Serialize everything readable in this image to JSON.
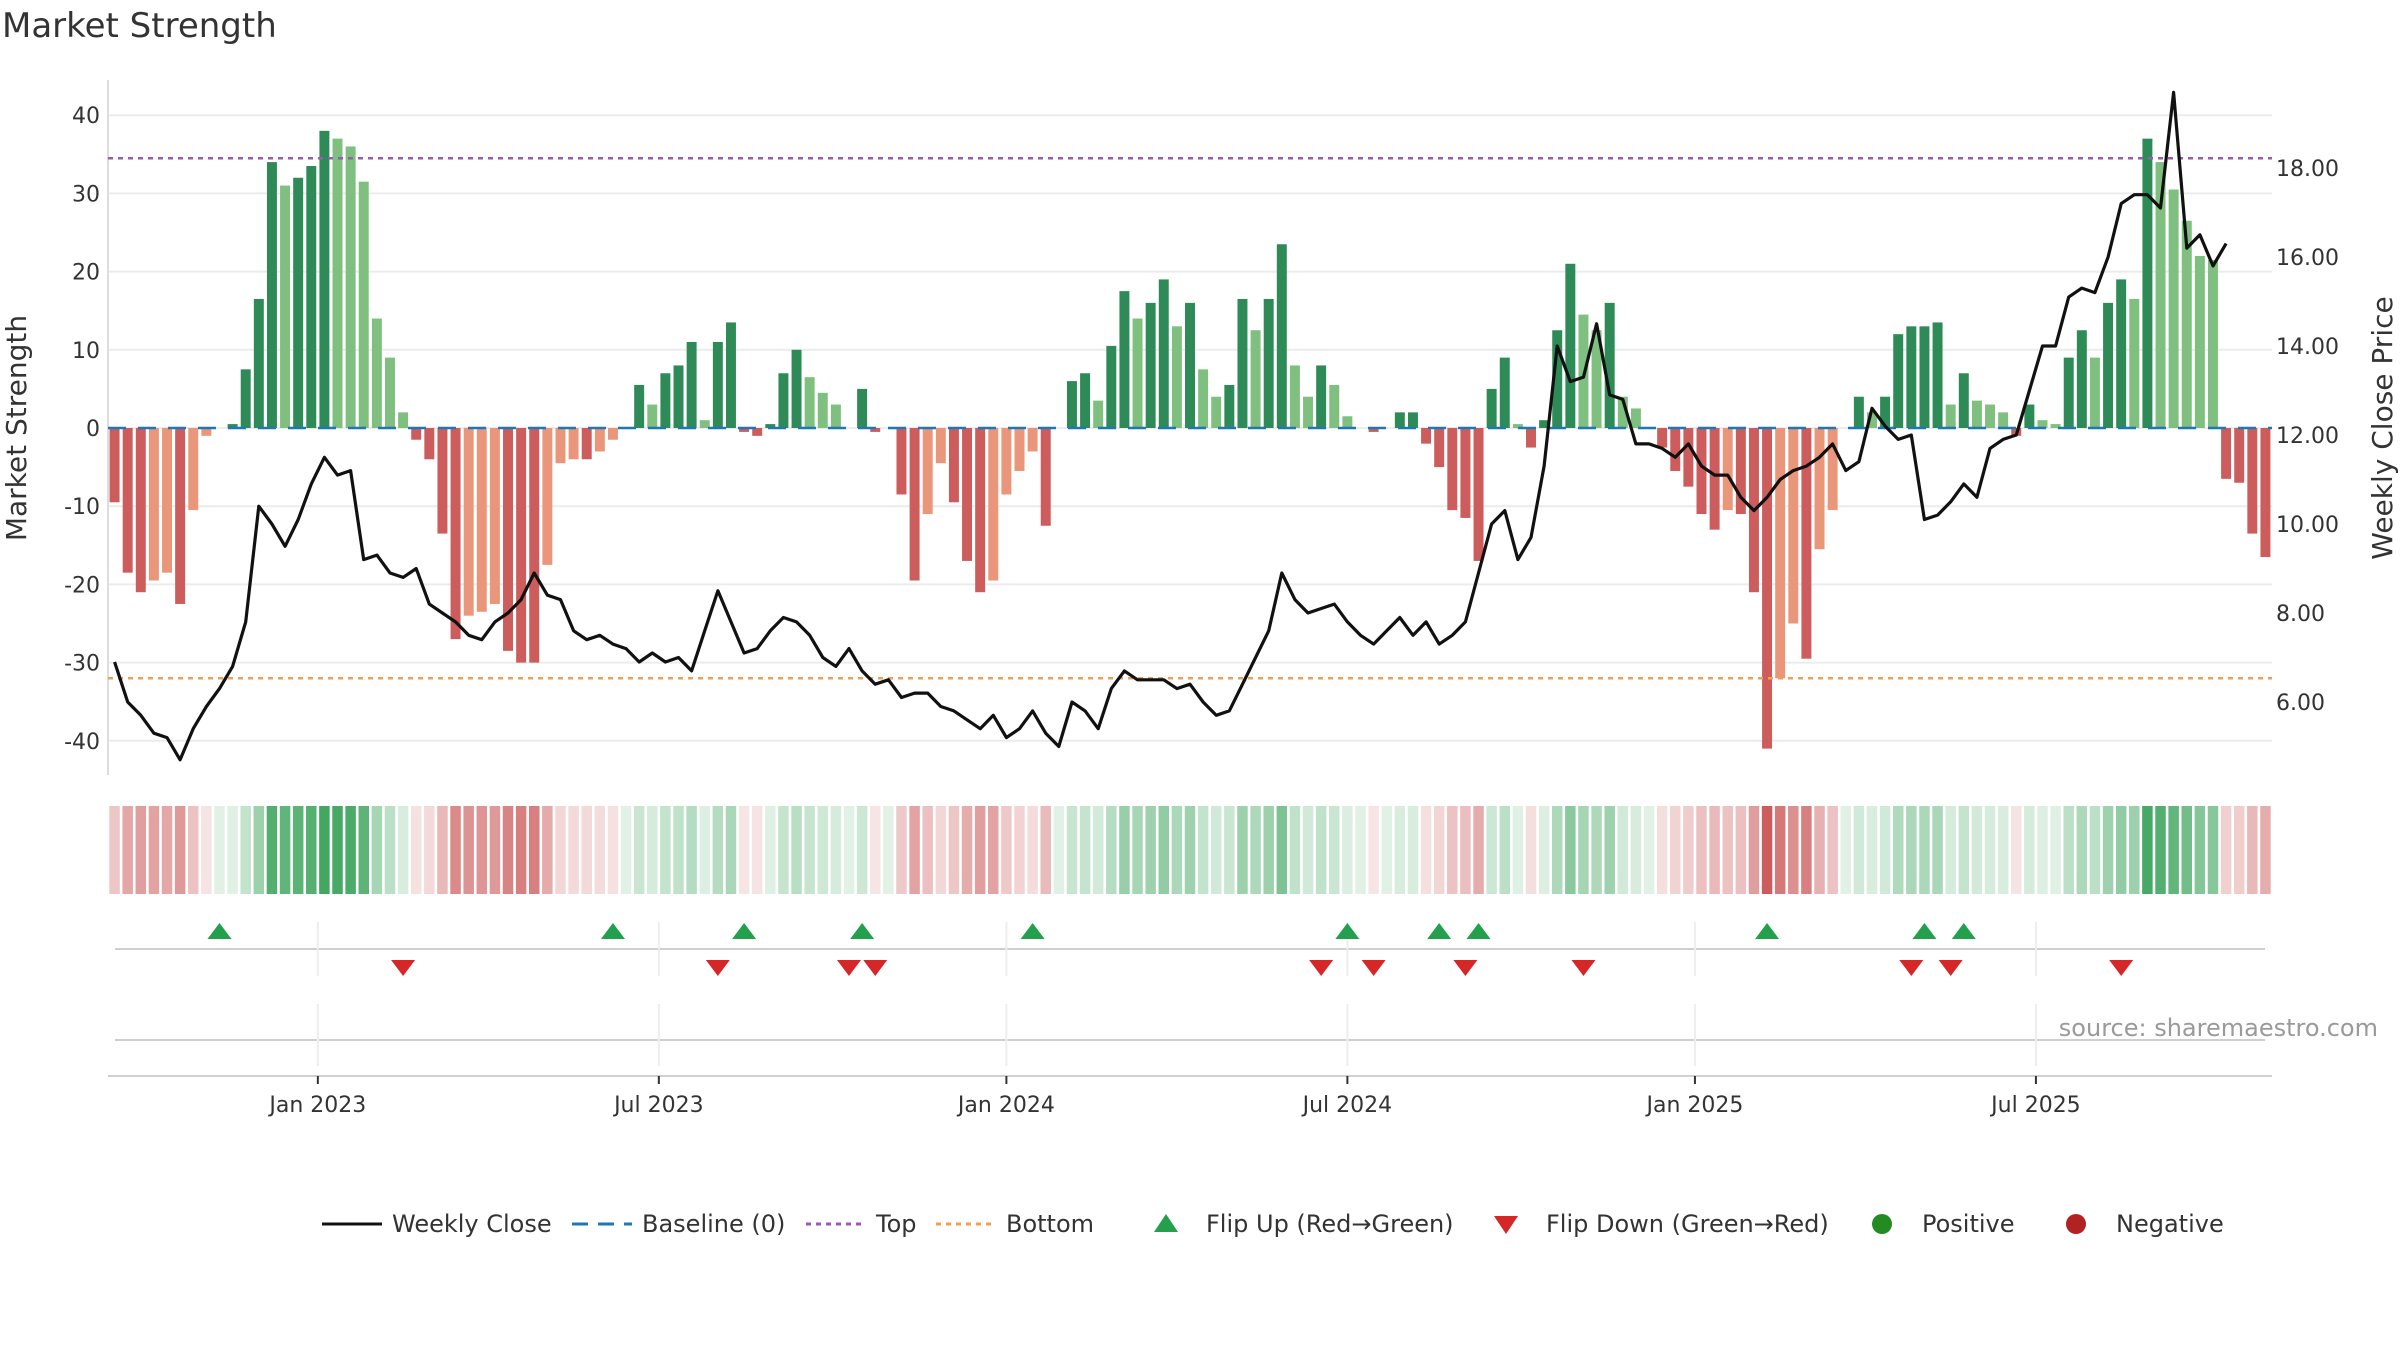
{
  "title": "Market Strength",
  "source": "source: sharemaestro.com",
  "colors": {
    "pos_strong": "#2e8b57",
    "pos_weak": "#7fbf7f",
    "neg_strong": "#cd5c5c",
    "neg_weak": "#e9967a",
    "close": "#111111",
    "baseline": "#1f77b4",
    "top": "#9b59b6",
    "bottom": "#f0a050",
    "flip_up": "#22a04b",
    "flip_down": "#d62728",
    "positive": "#228b22",
    "negative": "#b22222"
  },
  "legend": [
    {
      "label": "Weekly Close",
      "symbol": "line"
    },
    {
      "label": "Baseline (0)",
      "symbol": "dash"
    },
    {
      "label": "Top",
      "symbol": "dot-purple"
    },
    {
      "label": "Bottom",
      "symbol": "dot-orange"
    },
    {
      "label": "Flip Up (Red→Green)",
      "symbol": "tri-up"
    },
    {
      "label": "Flip Down (Green→Red)",
      "symbol": "tri-down"
    },
    {
      "label": "Positive",
      "symbol": "circle-green"
    },
    {
      "label": "Negative",
      "symbol": "circle-red"
    }
  ],
  "chart_data": {
    "type": "bar",
    "title": "Market Strength",
    "ylabel": "Market Strength",
    "y2label": "Weekly Close Price",
    "ylim": [
      -45,
      42
    ],
    "y2lim": [
      4.0,
      19.5
    ],
    "yticks": [
      40,
      30,
      20,
      10,
      0,
      -10,
      -20,
      -30,
      -40
    ],
    "y2ticks": [
      "18.00",
      "16.00",
      "14.00",
      "12.00",
      "10.00",
      "8.00",
      "6.00"
    ],
    "xticks": [
      {
        "label": "Jan 2023",
        "week": 15.5
      },
      {
        "label": "Jul 2023",
        "week": 41.5
      },
      {
        "label": "Jan 2024",
        "week": 68
      },
      {
        "label": "Jul 2024",
        "week": 94
      },
      {
        "label": "Jan 2025",
        "week": 120.5
      },
      {
        "label": "Jul 2025",
        "week": 146.5
      }
    ],
    "top_level": 34.5,
    "bottom_level": -32,
    "baseline": 0,
    "grid": true,
    "legend_position": "bottom",
    "strength": [
      -9.5,
      -18.5,
      -21,
      -19.5,
      -18.5,
      -22.5,
      -10.5,
      -1,
      0,
      0.5,
      7.5,
      16.5,
      34,
      31,
      32,
      33.5,
      38,
      37,
      36,
      31.5,
      14,
      9,
      2,
      -1.5,
      -4,
      -13.5,
      -27,
      -24,
      -23.5,
      -22.5,
      -28.5,
      -30,
      -30,
      -17.5,
      -4.5,
      -4,
      -4,
      -3,
      -1.5,
      0,
      5.5,
      3,
      7,
      8,
      11,
      1,
      11,
      13.5,
      -0.5,
      -1,
      0.5,
      7,
      10,
      6.5,
      4.5,
      3,
      0,
      5,
      -0.5,
      0,
      -8.5,
      -19.5,
      -11,
      -4.5,
      -9.5,
      -17,
      -21,
      -19.5,
      -8.5,
      -5.5,
      -3,
      -12.5,
      0,
      6,
      7,
      3.5,
      10.5,
      17.5,
      14,
      16,
      19,
      13,
      16,
      7.5,
      4,
      5.5,
      16.5,
      12.5,
      16.5,
      23.5,
      8,
      4,
      8,
      5.5,
      1.5,
      0,
      -0.5,
      0,
      2,
      2,
      -2,
      -5,
      -10.5,
      -11.5,
      -17,
      5,
      9,
      0.5,
      -2.5,
      1,
      12.5,
      21,
      14.5,
      12.5,
      16,
      4,
      2.5,
      0,
      -2.5,
      -5.5,
      -7.5,
      -11,
      -13,
      -10.5,
      -11,
      -21,
      -41,
      -32,
      -25,
      -29.5,
      -15.5,
      -10.5,
      0,
      4,
      2,
      4,
      12,
      13,
      13,
      13.5,
      3,
      7,
      3.5,
      3,
      2,
      -1,
      3,
      1,
      0.5,
      9,
      12.5,
      9,
      16,
      19,
      16.5,
      37,
      34,
      30.5,
      26.5,
      22,
      21.5,
      -6.5,
      -7,
      -13.5,
      -16.5
    ],
    "close": [
      6.9,
      6.0,
      5.7,
      5.3,
      5.2,
      4.7,
      5.4,
      5.9,
      6.3,
      6.8,
      7.8,
      10.4,
      10.0,
      9.5,
      10.1,
      10.9,
      11.5,
      11.1,
      11.2,
      9.2,
      9.3,
      8.9,
      8.8,
      9.0,
      8.2,
      8.0,
      7.8,
      7.5,
      7.4,
      7.8,
      8.0,
      8.3,
      8.9,
      8.4,
      8.3,
      7.6,
      7.4,
      7.5,
      7.3,
      7.2,
      6.9,
      7.1,
      6.9,
      7.0,
      6.7,
      7.6,
      8.5,
      7.8,
      7.1,
      7.2,
      7.6,
      7.9,
      7.8,
      7.5,
      7.0,
      6.8,
      7.2,
      6.7,
      6.4,
      6.5,
      6.1,
      6.2,
      6.2,
      5.9,
      5.8,
      5.6,
      5.4,
      5.7,
      5.2,
      5.4,
      5.8,
      5.3,
      5.0,
      6.0,
      5.8,
      5.4,
      6.3,
      6.7,
      6.5,
      6.5,
      6.5,
      6.3,
      6.4,
      6.0,
      5.7,
      5.8,
      6.4,
      7.0,
      7.6,
      8.9,
      8.3,
      8.0,
      8.1,
      8.2,
      7.8,
      7.5,
      7.3,
      7.6,
      7.9,
      7.5,
      7.8,
      7.3,
      7.5,
      7.8,
      8.9,
      10.0,
      10.3,
      9.2,
      9.7,
      11.3,
      14.0,
      13.2,
      13.3,
      14.5,
      12.9,
      12.8,
      11.8,
      11.8,
      11.7,
      11.5,
      11.8,
      11.3,
      11.1,
      11.1,
      10.6,
      10.3,
      10.6,
      11.0,
      11.2,
      11.3,
      11.5,
      11.8,
      11.2,
      11.4,
      12.6,
      12.2,
      11.9,
      12.0,
      10.1,
      10.2,
      10.5,
      10.9,
      10.6,
      11.7,
      11.9,
      12.0,
      13.0,
      14.0,
      14.0,
      15.1,
      15.3,
      15.2,
      16.0,
      17.2,
      17.4,
      17.4,
      17.1,
      19.7,
      16.2,
      16.5,
      15.8,
      16.3
    ],
    "flips_up": [
      8,
      38,
      48,
      57,
      70,
      94,
      101,
      104,
      126,
      138,
      141
    ],
    "flips_down": [
      22,
      46,
      56,
      58,
      92,
      96,
      103,
      112,
      137,
      140,
      153
    ]
  }
}
